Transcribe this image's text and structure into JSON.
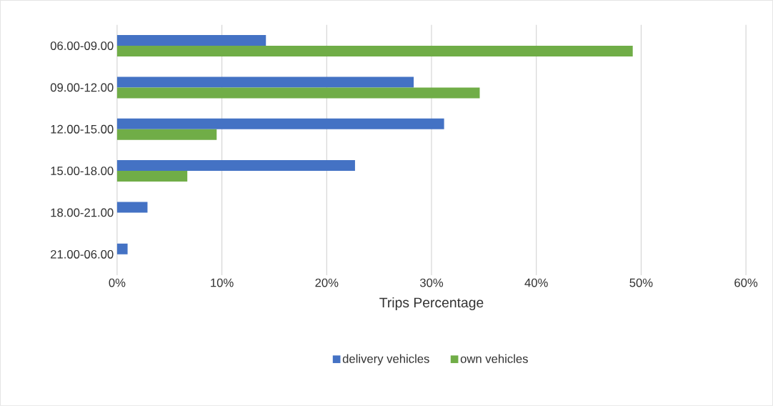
{
  "chart_data": {
    "type": "bar",
    "orientation": "horizontal",
    "xlabel": "Trips Percentage",
    "categories": [
      "06.00-09.00",
      "09.00-12.00",
      "12.00-15.00",
      "15.00-18.00",
      "18.00-21.00",
      "21.00-06.00"
    ],
    "series": [
      {
        "name": "delivery vehicles",
        "color": "#4472c4",
        "values": [
          14.2,
          28.3,
          31.2,
          22.7,
          2.9,
          1.0
        ]
      },
      {
        "name": "own vehicles",
        "color": "#70ad47",
        "values": [
          49.2,
          34.6,
          9.5,
          6.7,
          0,
          0
        ]
      }
    ],
    "xlim": [
      0,
      60
    ],
    "xticks": [
      {
        "value": 0,
        "label": "0%"
      },
      {
        "value": 10,
        "label": "10%"
      },
      {
        "value": 20,
        "label": "20%"
      },
      {
        "value": 30,
        "label": "30%"
      },
      {
        "value": 40,
        "label": "40%"
      },
      {
        "value": 50,
        "label": "50%"
      },
      {
        "value": 60,
        "label": "60%"
      }
    ],
    "grid": "x",
    "legend": "bottom"
  }
}
